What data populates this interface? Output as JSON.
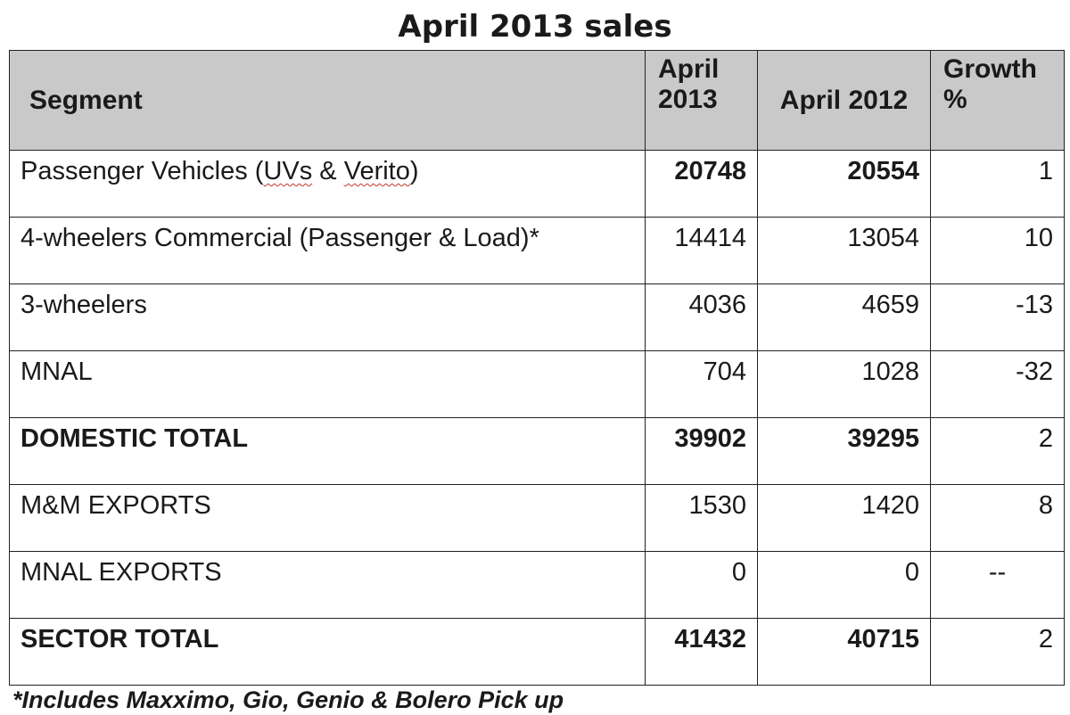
{
  "title": "April 2013 sales",
  "table": {
    "headers": {
      "segment": "Segment",
      "april_2013": "April 2013",
      "april_2012": "April 2012",
      "growth": "Growth %"
    },
    "rows": [
      {
        "segment_pre": "Passenger Vehicles (",
        "segment_hl1": "UVs",
        "segment_mid": " & ",
        "segment_hl2": "Verito",
        "segment_post": ")",
        "april_2013": "20748",
        "april_2012": "20554",
        "growth": "1"
      },
      {
        "segment": "4-wheelers Commercial (Passenger & Load)*",
        "april_2013": "14414",
        "april_2012": "13054",
        "growth": "10"
      },
      {
        "segment": "3-wheelers",
        "april_2013": "4036",
        "april_2012": "4659",
        "growth": "-13"
      },
      {
        "segment": "MNAL",
        "april_2013": "704",
        "april_2012": "1028",
        "growth": "-32"
      },
      {
        "segment": "DOMESTIC TOTAL",
        "april_2013": "39902",
        "april_2012": "39295",
        "growth": "2"
      },
      {
        "segment": "M&M EXPORTS",
        "april_2013": "1530",
        "april_2012": "1420",
        "growth": "8"
      },
      {
        "segment": "MNAL EXPORTS",
        "april_2013": "0",
        "april_2012": "0",
        "growth": "--"
      },
      {
        "segment": "SECTOR TOTAL",
        "april_2013": "41432",
        "april_2012": "40715",
        "growth": "2"
      }
    ]
  },
  "footnote": "*Includes Maxximo, Gio, Genio & Bolero Pick up"
}
